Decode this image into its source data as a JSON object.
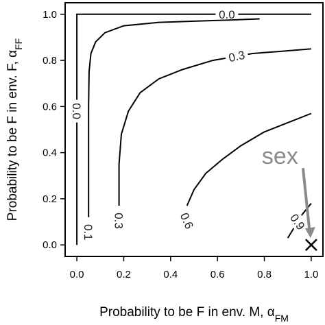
{
  "chart_data": {
    "type": "line",
    "title": "",
    "xlabel": "Probability to be F in env. M, α",
    "xlabel_sub": "FM",
    "ylabel": "Probability to be F in env. F, α",
    "ylabel_sub": "FF",
    "xlim": [
      -0.05,
      1.05
    ],
    "ylim": [
      -0.05,
      1.05
    ],
    "xticks": [
      "0.0",
      "0.2",
      "0.4",
      "0.6",
      "0.8",
      "1.0"
    ],
    "yticks": [
      "0.0",
      "0.2",
      "0.4",
      "0.6",
      "0.8",
      "1.0"
    ],
    "grid": false,
    "contours": [
      {
        "label": "0.0",
        "points": [
          [
            0,
            0
          ],
          [
            0,
            1
          ],
          [
            1,
            1
          ]
        ]
      },
      {
        "label": "0.1",
        "points": [
          [
            0.05,
            0.12
          ],
          [
            0.05,
            0.6
          ],
          [
            0.052,
            0.75
          ],
          [
            0.06,
            0.83
          ],
          [
            0.08,
            0.88
          ],
          [
            0.12,
            0.92
          ],
          [
            0.2,
            0.95
          ],
          [
            0.35,
            0.965
          ],
          [
            0.5,
            0.97
          ],
          [
            0.65,
            0.975
          ],
          [
            0.78,
            0.98
          ]
        ]
      },
      {
        "label": "0.3",
        "points": [
          [
            0.18,
            0.17
          ],
          [
            0.18,
            0.35
          ],
          [
            0.19,
            0.48
          ],
          [
            0.22,
            0.58
          ],
          [
            0.27,
            0.66
          ],
          [
            0.35,
            0.72
          ],
          [
            0.45,
            0.76
          ],
          [
            0.58,
            0.8
          ],
          [
            0.75,
            0.83
          ],
          [
            0.88,
            0.84
          ],
          [
            1.0,
            0.85
          ]
        ]
      },
      {
        "label": "0.6",
        "points": [
          [
            0.47,
            0.17
          ],
          [
            0.5,
            0.24
          ],
          [
            0.55,
            0.31
          ],
          [
            0.62,
            0.37
          ],
          [
            0.7,
            0.43
          ],
          [
            0.8,
            0.49
          ],
          [
            0.9,
            0.53
          ],
          [
            1.0,
            0.57
          ]
        ]
      },
      {
        "label": "0.9",
        "points": [
          [
            0.9,
            0.03
          ],
          [
            0.93,
            0.08
          ],
          [
            0.96,
            0.13
          ],
          [
            1.0,
            0.18
          ]
        ]
      }
    ],
    "annotation": {
      "text": "sex",
      "target": [
        1.0,
        0.0
      ],
      "marker": "x",
      "arrow_color": "#8a8a8a"
    }
  }
}
